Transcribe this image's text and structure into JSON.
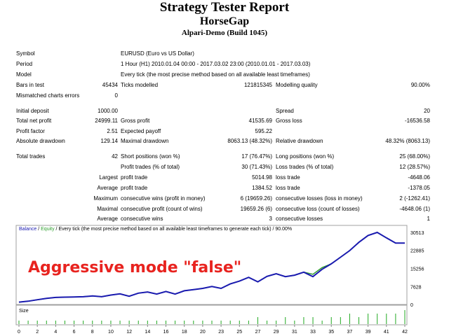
{
  "header": {
    "title": "Strategy Tester Report",
    "expert": "HorseGap",
    "server": "Alpari-Demo (Build 1045)"
  },
  "settings": {
    "symbol_label": "Symbol",
    "symbol_value": "EURUSD (Euro vs US Dollar)",
    "period_label": "Period",
    "period_value": "1 Hour (H1) 2010.01.04 00:00 - 2017.03.02 23:00 (2010.01.01 - 2017.03.03)",
    "model_label": "Model",
    "model_value": "Every tick (the most precise method based on all available least timeframes)",
    "bars_label": "Bars in test",
    "bars_value": "45434",
    "ticks_label": "Ticks modelled",
    "ticks_value": "121815345",
    "quality_label": "Modelling quality",
    "quality_value": "90.00%",
    "mismatch_label": "Mismatched charts errors",
    "mismatch_value": "0"
  },
  "results": {
    "deposit_label": "Initial deposit",
    "deposit_value": "1000.00",
    "spread_label": "Spread",
    "spread_value": "20",
    "netprofit_label": "Total net profit",
    "netprofit_value": "24999.11",
    "grossprofit_label": "Gross profit",
    "grossprofit_value": "41535.69",
    "grossloss_label": "Gross loss",
    "grossloss_value": "-16536.58",
    "pf_label": "Profit factor",
    "pf_value": "2.51",
    "payoff_label": "Expected payoff",
    "payoff_value": "595.22",
    "absdd_label": "Absolute drawdown",
    "absdd_value": "129.14",
    "maxdd_label": "Maximal drawdown",
    "maxdd_value": "8063.13 (48.32%)",
    "reldd_label": "Relative drawdown",
    "reldd_value": "48.32% (8063.13)",
    "trades_label": "Total trades",
    "trades_value": "42",
    "short_label": "Short positions (won %)",
    "short_value": "17 (76.47%)",
    "long_label": "Long positions (won %)",
    "long_value": "25 (68.00%)",
    "pt_label": "Profit trades (% of total)",
    "pt_value": "30 (71.43%)",
    "lt_label": "Loss trades (% of total)",
    "lt_value": "12 (28.57%)",
    "largest_label": "Largest",
    "largest_profit_label": "profit trade",
    "largest_profit_value": "5014.98",
    "largest_loss_label": "loss trade",
    "largest_loss_value": "-4648.06",
    "average_label": "Average",
    "average_profit_label": "profit trade",
    "average_profit_value": "1384.52",
    "average_loss_label": "loss trade",
    "average_loss_value": "-1378.05",
    "maximum_label": "Maximum",
    "max_cw_label": "consecutive wins (profit in money)",
    "max_cw_value": "6 (19659.26)",
    "max_cl_label": "consecutive losses (loss in money)",
    "max_cl_value": "2 (-1262.41)",
    "maximal_label": "Maximal",
    "mxl_cp_label": "consecutive profit (count of wins)",
    "mxl_cp_value": "19659.26 (6)",
    "mxl_cl_label": "consecutive loss (count of losses)",
    "mxl_cl_value": "-4648.06 (1)",
    "avg2_label": "Average",
    "avg_cw_label": "consecutive wins",
    "avg_cw_value": "3",
    "avg_cl_label": "consecutive losses",
    "avg_cl_value": "1"
  },
  "chart_header": {
    "balance": "Balance",
    "sep": " / ",
    "equity": "Equity",
    "rest": " / Every tick (the most precise method based on all available least timeframes to generate each tick) / 90.00%"
  },
  "overlay_text": "Aggressive mode \"false\"",
  "chart_data": {
    "type": "line",
    "title": "",
    "y_ticks": [
      "30513",
      "22885",
      "15256",
      "7628",
      "0"
    ],
    "x_ticks": [
      "0",
      "2",
      "4",
      "6",
      "8",
      "10",
      "12",
      "14",
      "16",
      "18",
      "20",
      "23",
      "25",
      "27",
      "29",
      "31",
      "33",
      "35",
      "37",
      "39",
      "41",
      "42"
    ],
    "size_label": "Size",
    "colors": {
      "balance": "#1a1ab0",
      "equity": "#2e9e2e",
      "size": "#22aa22"
    },
    "ylim": [
      0,
      30513
    ],
    "x": [
      0,
      1,
      2,
      3,
      4,
      5,
      6,
      7,
      8,
      9,
      10,
      11,
      12,
      13,
      14,
      15,
      16,
      17,
      18,
      19,
      20,
      21,
      22,
      23,
      24,
      25,
      26,
      27,
      28,
      29,
      30,
      31,
      32,
      33,
      34,
      35,
      36,
      37,
      38,
      39,
      40,
      41,
      42
    ],
    "series": [
      {
        "name": "Balance",
        "values": [
          1000,
          1400,
          2000,
          2600,
          3000,
          3100,
          3200,
          3300,
          3600,
          3300,
          4000,
          4500,
          3500,
          4800,
          5300,
          4400,
          5500,
          4400,
          5800,
          6300,
          6800,
          7600,
          6800,
          8700,
          9900,
          11500,
          9600,
          11900,
          13000,
          11800,
          12400,
          13700,
          11800,
          14900,
          17200,
          20000,
          22800,
          26300,
          29200,
          30513,
          28200,
          25999,
          25999
        ]
      },
      {
        "name": "Equity",
        "values": [
          1000,
          1400,
          2000,
          2600,
          3000,
          3100,
          3200,
          3300,
          3600,
          3300,
          4000,
          4500,
          3500,
          4800,
          5300,
          4400,
          5500,
          4400,
          5800,
          6300,
          6800,
          7600,
          6800,
          8700,
          9900,
          11500,
          9600,
          11900,
          13000,
          11800,
          12400,
          13700,
          12800,
          15600,
          17200,
          20000,
          22800,
          26300,
          29200,
          30513,
          28200,
          25999,
          25999
        ]
      }
    ],
    "size_values": [
      1,
      1,
      1,
      1,
      1,
      1,
      1,
      1,
      1,
      1,
      1,
      1,
      1,
      1,
      1,
      1,
      1,
      1,
      1,
      1,
      1,
      1,
      1,
      1,
      1,
      1,
      2,
      1,
      1,
      2,
      1,
      2,
      2,
      1,
      2,
      2,
      3,
      2,
      3,
      3,
      3,
      3,
      4
    ]
  }
}
